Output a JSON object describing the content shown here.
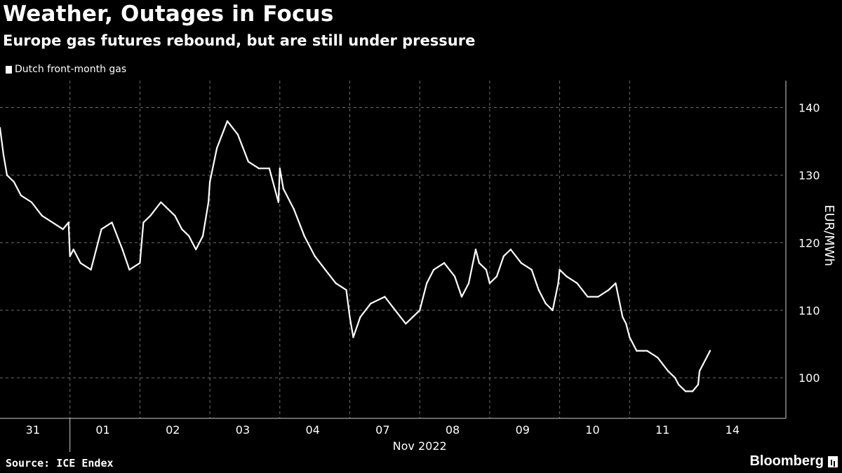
{
  "header": {
    "title": "Weather, Outages in Focus",
    "subtitle": "Europe gas futures rebound, but are still under pressure"
  },
  "footer": {
    "source": "Source: ICE Endex",
    "brand": "Bloomberg"
  },
  "colors": {
    "background": "#000000",
    "line": "#ffffff",
    "grid": "#6e6e6e",
    "text": "#ffffff"
  },
  "chart_data": {
    "type": "line",
    "title": "Weather, Outages in Focus",
    "subtitle": "Europe gas futures rebound, but are still under pressure",
    "xlabel": "Nov 2022",
    "ylabel": "EUR/MWh",
    "ylim": [
      94,
      144
    ],
    "yticks": [
      100,
      110,
      120,
      130,
      140
    ],
    "legend": "top-left",
    "grid": true,
    "series": [
      {
        "name": "Dutch front-month gas",
        "color": "#ffffff",
        "days": [
          "31",
          "01",
          "02",
          "03",
          "04",
          "07",
          "08",
          "09",
          "10",
          "11",
          "14"
        ],
        "x": [
          0,
          0.05,
          0.1,
          0.2,
          0.3,
          0.45,
          0.6,
          0.75,
          0.9,
          0.98,
          1.0,
          1.05,
          1.15,
          1.3,
          1.45,
          1.6,
          1.75,
          1.85,
          2.0,
          2.05,
          2.15,
          2.3,
          2.4,
          2.5,
          2.6,
          2.7,
          2.8,
          2.9,
          2.98,
          3.0,
          3.1,
          3.25,
          3.4,
          3.55,
          3.7,
          3.85,
          3.98,
          4.0,
          4.05,
          4.2,
          4.35,
          4.5,
          4.65,
          4.8,
          4.95,
          5.0,
          5.05,
          5.15,
          5.3,
          5.5,
          5.65,
          5.8,
          5.9,
          6.0,
          6.1,
          6.2,
          6.35,
          6.5,
          6.6,
          6.7,
          6.8,
          6.85,
          6.95,
          7.0,
          7.1,
          7.2,
          7.3,
          7.45,
          7.6,
          7.7,
          7.8,
          7.9,
          7.98,
          8.0,
          8.1,
          8.25,
          8.4,
          8.55,
          8.7,
          8.8,
          8.9,
          8.95,
          9.0,
          9.1,
          9.25,
          9.4,
          9.55,
          9.65,
          9.7,
          9.8,
          9.9,
          9.98,
          10.0,
          10.05,
          10.15
        ],
        "values": [
          137,
          133,
          130,
          129,
          127,
          126,
          124,
          123,
          122,
          123,
          118,
          119,
          117,
          116,
          122,
          123,
          119,
          116,
          117,
          123,
          124,
          126,
          125,
          124,
          122,
          121,
          119,
          121,
          126,
          129,
          134,
          138,
          136,
          132,
          131,
          131,
          126,
          131,
          128,
          125,
          121,
          118,
          116,
          114,
          113,
          109,
          106,
          109,
          111,
          112,
          110,
          108,
          109,
          110,
          114,
          116,
          117,
          115,
          112,
          114,
          119,
          117,
          116,
          114,
          115,
          118,
          119,
          117,
          116,
          113,
          111,
          110,
          114,
          116,
          115,
          114,
          112,
          112,
          113,
          114,
          109,
          108,
          106,
          104,
          104,
          103,
          101,
          100,
          99,
          98,
          98,
          99,
          101,
          102,
          104
        ]
      }
    ]
  }
}
